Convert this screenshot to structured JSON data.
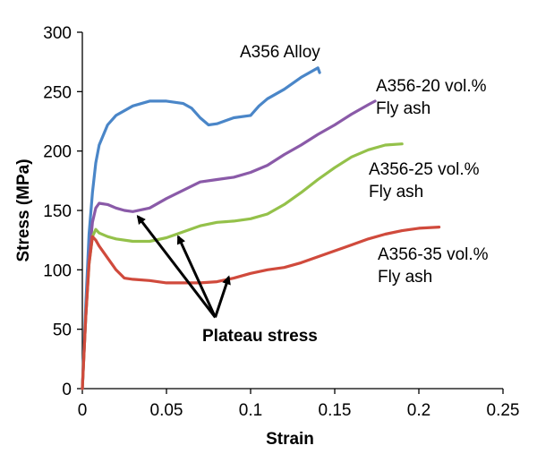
{
  "chart_data": {
    "type": "line",
    "xlabel": "Strain",
    "ylabel": "Stress (MPa)",
    "xlim": [
      0,
      0.25
    ],
    "ylim": [
      0,
      300
    ],
    "x_ticks": [
      0,
      0.05,
      0.1,
      0.15,
      0.2,
      0.25
    ],
    "y_ticks": [
      0,
      50,
      100,
      150,
      200,
      250,
      300
    ],
    "x_tick_labels": [
      "0",
      "0.05",
      "0.1",
      "0.15",
      "0.2",
      "0.25"
    ],
    "y_tick_labels": [
      "0",
      "50",
      "100",
      "150",
      "200",
      "250",
      "300"
    ],
    "grid": false,
    "series": [
      {
        "name": "A356 Alloy",
        "label_lines": [
          "A356 Alloy"
        ],
        "color": "#4a86c8",
        "points": [
          [
            0,
            0
          ],
          [
            0.002,
            70
          ],
          [
            0.004,
            130
          ],
          [
            0.006,
            165
          ],
          [
            0.008,
            190
          ],
          [
            0.01,
            205
          ],
          [
            0.015,
            222
          ],
          [
            0.02,
            230
          ],
          [
            0.03,
            238
          ],
          [
            0.04,
            242
          ],
          [
            0.05,
            242
          ],
          [
            0.06,
            240
          ],
          [
            0.065,
            236
          ],
          [
            0.07,
            228
          ],
          [
            0.075,
            222
          ],
          [
            0.08,
            223
          ],
          [
            0.09,
            228
          ],
          [
            0.1,
            230
          ],
          [
            0.105,
            238
          ],
          [
            0.11,
            244
          ],
          [
            0.12,
            252
          ],
          [
            0.13,
            262
          ],
          [
            0.14,
            270
          ],
          [
            0.141,
            266
          ]
        ]
      },
      {
        "name": "A356-20 vol.% Fly ash",
        "label_lines": [
          "A356-20 vol.%",
          "Fly ash"
        ],
        "color": "#8a5aa8",
        "points": [
          [
            0,
            0
          ],
          [
            0.002,
            60
          ],
          [
            0.004,
            110
          ],
          [
            0.006,
            140
          ],
          [
            0.008,
            152
          ],
          [
            0.01,
            156
          ],
          [
            0.015,
            155
          ],
          [
            0.02,
            152
          ],
          [
            0.025,
            150
          ],
          [
            0.03,
            149
          ],
          [
            0.04,
            152
          ],
          [
            0.05,
            160
          ],
          [
            0.06,
            167
          ],
          [
            0.07,
            174
          ],
          [
            0.08,
            176
          ],
          [
            0.09,
            178
          ],
          [
            0.1,
            182
          ],
          [
            0.11,
            188
          ],
          [
            0.12,
            197
          ],
          [
            0.13,
            205
          ],
          [
            0.14,
            214
          ],
          [
            0.15,
            222
          ],
          [
            0.16,
            231
          ],
          [
            0.17,
            239
          ],
          [
            0.174,
            242
          ]
        ]
      },
      {
        "name": "A356-25 vol.% Fly ash",
        "label_lines": [
          "A356-25 vol.%",
          "Fly ash"
        ],
        "color": "#94c14a",
        "points": [
          [
            0,
            0
          ],
          [
            0.002,
            60
          ],
          [
            0.004,
            105
          ],
          [
            0.006,
            128
          ],
          [
            0.008,
            134
          ],
          [
            0.01,
            131
          ],
          [
            0.015,
            128
          ],
          [
            0.02,
            126
          ],
          [
            0.03,
            124
          ],
          [
            0.04,
            124
          ],
          [
            0.05,
            127
          ],
          [
            0.06,
            132
          ],
          [
            0.07,
            137
          ],
          [
            0.08,
            140
          ],
          [
            0.09,
            141
          ],
          [
            0.1,
            143
          ],
          [
            0.11,
            147
          ],
          [
            0.12,
            155
          ],
          [
            0.13,
            165
          ],
          [
            0.14,
            176
          ],
          [
            0.15,
            186
          ],
          [
            0.16,
            195
          ],
          [
            0.17,
            201
          ],
          [
            0.18,
            205
          ],
          [
            0.19,
            206
          ]
        ]
      },
      {
        "name": "A356-35 vol.% Fly ash",
        "label_lines": [
          "A356-35 vol.%",
          "Fly ash"
        ],
        "color": "#d04a3c",
        "points": [
          [
            0,
            0
          ],
          [
            0.002,
            60
          ],
          [
            0.004,
            105
          ],
          [
            0.006,
            128
          ],
          [
            0.008,
            125
          ],
          [
            0.01,
            120
          ],
          [
            0.015,
            110
          ],
          [
            0.02,
            100
          ],
          [
            0.025,
            93
          ],
          [
            0.03,
            92
          ],
          [
            0.04,
            91
          ],
          [
            0.05,
            89
          ],
          [
            0.06,
            89
          ],
          [
            0.07,
            89
          ],
          [
            0.08,
            90
          ],
          [
            0.09,
            93
          ],
          [
            0.1,
            97
          ],
          [
            0.11,
            100
          ],
          [
            0.12,
            102
          ],
          [
            0.13,
            106
          ],
          [
            0.14,
            111
          ],
          [
            0.15,
            116
          ],
          [
            0.16,
            121
          ],
          [
            0.17,
            126
          ],
          [
            0.18,
            130
          ],
          [
            0.19,
            133
          ],
          [
            0.2,
            135
          ],
          [
            0.212,
            136
          ]
        ]
      }
    ],
    "annotation": {
      "text": "Plateau stress",
      "arrow_targets": [
        [
          0.033,
          145
        ],
        [
          0.057,
          128
        ],
        [
          0.087,
          94
        ]
      ],
      "origin": [
        0.079,
        60
      ]
    }
  }
}
